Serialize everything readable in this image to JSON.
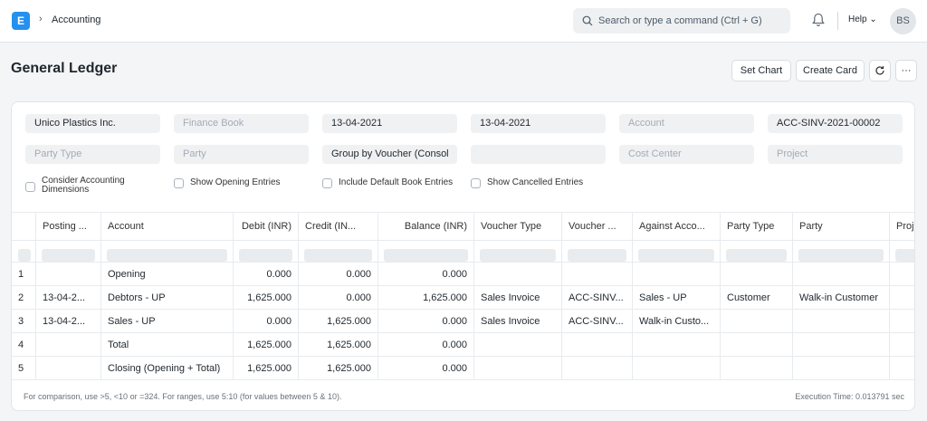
{
  "navbar": {
    "logo_letter": "E",
    "breadcrumb": "Accounting",
    "search_placeholder": "Search or type a command (Ctrl + G)",
    "help_label": "Help",
    "avatar_initials": "BS"
  },
  "page": {
    "title": "General Ledger",
    "set_chart": "Set Chart",
    "create_card": "Create Card",
    "more": "···"
  },
  "filters": {
    "company": "Unico Plastics Inc.",
    "finance_book": "Finance Book",
    "from_date": "13-04-2021",
    "to_date": "13-04-2021",
    "account": "Account",
    "voucher_no": "ACC-SINV-2021-00002",
    "party_type": "Party Type",
    "party": "Party",
    "group_by": "Group by Voucher (Consol",
    "blank": "",
    "cost_center": "Cost Center",
    "project": "Project"
  },
  "checks": {
    "consider_dims_1": "Consider Accounting",
    "consider_dims_2": "Dimensions",
    "show_opening": "Show Opening Entries",
    "include_default": "Include Default Book Entries",
    "show_cancelled": "Show Cancelled Entries"
  },
  "table": {
    "headers": [
      "Posting ...",
      "Account",
      "Debit (INR)",
      "Credit (IN...",
      "Balance (INR)",
      "Voucher Type",
      "Voucher ...",
      "Against Acco...",
      "Party Type",
      "Party",
      "Proj"
    ],
    "rows": [
      {
        "n": "1",
        "date": "",
        "account": "Opening",
        "debit": "0.000",
        "credit": "0.000",
        "balance": "0.000",
        "vtype": "",
        "vno": "",
        "against": "",
        "ptype": "",
        "party": ""
      },
      {
        "n": "2",
        "date": "13-04-2...",
        "account": "Debtors - UP",
        "debit": "1,625.000",
        "credit": "0.000",
        "balance": "1,625.000",
        "vtype": "Sales Invoice",
        "vno": "ACC-SINV...",
        "against": "Sales - UP",
        "ptype": "Customer",
        "party": "Walk-in Customer"
      },
      {
        "n": "3",
        "date": "13-04-2...",
        "account": "Sales - UP",
        "debit": "0.000",
        "credit": "1,625.000",
        "balance": "0.000",
        "vtype": "Sales Invoice",
        "vno": "ACC-SINV...",
        "against": "Walk-in Custo...",
        "ptype": "",
        "party": ""
      },
      {
        "n": "4",
        "date": "",
        "account": "Total",
        "debit": "1,625.000",
        "credit": "1,625.000",
        "balance": "0.000",
        "vtype": "",
        "vno": "",
        "against": "",
        "ptype": "",
        "party": ""
      },
      {
        "n": "5",
        "date": "",
        "account": "Closing (Opening + Total)",
        "debit": "1,625.000",
        "credit": "1,625.000",
        "balance": "0.000",
        "vtype": "",
        "vno": "",
        "against": "",
        "ptype": "",
        "party": ""
      }
    ]
  },
  "footer": {
    "hint": "For comparison, use >5, <10 or =324. For ranges, use 5:10 (for values between 5 & 10).",
    "exec_time": "Execution Time: 0.013791 sec"
  }
}
